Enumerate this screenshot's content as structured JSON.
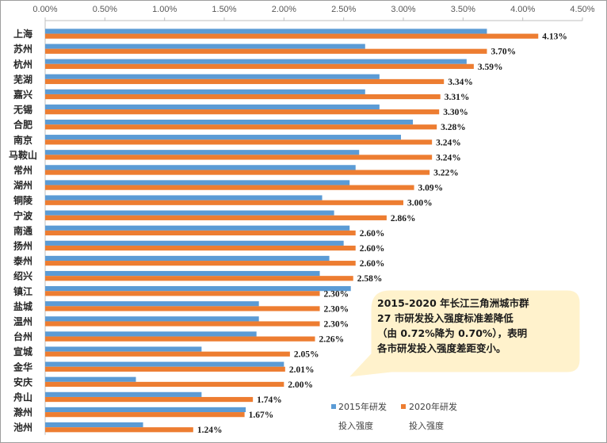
{
  "chart_data": {
    "type": "bar",
    "orientation": "horizontal",
    "categories": [
      "上海",
      "苏州",
      "杭州",
      "芜湖",
      "嘉兴",
      "无锡",
      "合肥",
      "南京",
      "马鞍山",
      "常州",
      "湖州",
      "铜陵",
      "宁波",
      "南通",
      "扬州",
      "泰州",
      "绍兴",
      "镇江",
      "盐城",
      "温州",
      "台州",
      "宣城",
      "金华",
      "安庆",
      "舟山",
      "滁州",
      "池州"
    ],
    "series": [
      {
        "name": "2015年研发投入强度",
        "color": "#5b9bd5",
        "values": [
          3.7,
          2.68,
          3.53,
          2.8,
          2.68,
          2.8,
          3.08,
          2.98,
          2.63,
          2.6,
          2.55,
          2.32,
          2.42,
          2.55,
          2.5,
          2.38,
          2.3,
          2.56,
          1.79,
          1.79,
          1.77,
          1.31,
          2.0,
          0.76,
          1.31,
          1.68,
          0.82
        ]
      },
      {
        "name": "2020年研发投入强度",
        "color": "#ed7d31",
        "values": [
          4.13,
          3.7,
          3.59,
          3.34,
          3.31,
          3.3,
          3.28,
          3.24,
          3.24,
          3.22,
          3.09,
          3.0,
          2.86,
          2.6,
          2.6,
          2.6,
          2.58,
          2.3,
          2.3,
          2.3,
          2.26,
          2.05,
          2.01,
          2.0,
          1.74,
          1.67,
          1.24
        ]
      }
    ],
    "data_labels": [
      "4.13%",
      "3.70%",
      "3.59%",
      "3.34%",
      "3.31%",
      "3.30%",
      "3.28%",
      "3.24%",
      "3.24%",
      "3.22%",
      "3.09%",
      "3.00%",
      "2.86%",
      "2.60%",
      "2.60%",
      "2.60%",
      "2.58%",
      "2.30%",
      "2.30%",
      "2.30%",
      "2.26%",
      "2.05%",
      "2.01%",
      "2.00%",
      "1.74%",
      "1.67%",
      "1.24%"
    ],
    "xlim": [
      0,
      4.5
    ],
    "x_ticks": [
      "0.00%",
      "0.50%",
      "1.00%",
      "1.50%",
      "2.00%",
      "2.50%",
      "3.00%",
      "3.50%",
      "4.00%",
      "4.50%"
    ],
    "axis_position": "top",
    "grid": false,
    "legend": {
      "placement": "bottom-right",
      "items": [
        {
          "line1": "2015年研发",
          "line2": "投入强度",
          "color": "#5b9bd5"
        },
        {
          "line1": "2020年研发",
          "line2": "投入强度",
          "color": "#ed7d31"
        }
      ]
    },
    "annotation": {
      "lines": [
        "2015-2020 年长江三角洲城市群",
        "27 市研发投入强度标准差降低",
        "（由 0.72%降为 0.70%），表明",
        "各市研发投入强度差距变小。"
      ],
      "fill": "#fff2cc"
    }
  }
}
